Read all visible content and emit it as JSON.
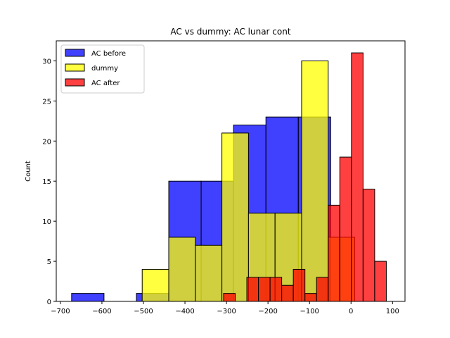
{
  "chart_data": {
    "type": "bar",
    "title": "AC vs dummy: AC lunar cont",
    "xlabel": "",
    "ylabel": "Count",
    "xlim": [
      -710,
      130
    ],
    "ylim": [
      0,
      32.5
    ],
    "xticks": [
      -700,
      -600,
      -500,
      -400,
      -300,
      -200,
      -100,
      0,
      100
    ],
    "yticks": [
      0,
      5,
      10,
      15,
      20,
      25,
      30
    ],
    "legend_position": "top-left",
    "grid": false,
    "series": [
      {
        "name": "AC before",
        "color": "#0000ff",
        "alpha": 0.75,
        "bins": [
          {
            "x0": -673,
            "x1": -595,
            "count": 1
          },
          {
            "x0": -595,
            "x1": -517,
            "count": 0
          },
          {
            "x0": -517,
            "x1": -439,
            "count": 1
          },
          {
            "x0": -439,
            "x1": -361,
            "count": 15
          },
          {
            "x0": -361,
            "x1": -283,
            "count": 15
          },
          {
            "x0": -283,
            "x1": -205,
            "count": 22
          },
          {
            "x0": -205,
            "x1": -127,
            "count": 23
          },
          {
            "x0": -127,
            "x1": -49,
            "count": 23
          }
        ]
      },
      {
        "name": "dummy",
        "color": "#ffff00",
        "alpha": 0.75,
        "bins": [
          {
            "x0": -503,
            "x1": -439,
            "count": 4
          },
          {
            "x0": -439,
            "x1": -375,
            "count": 8
          },
          {
            "x0": -375,
            "x1": -311,
            "count": 7
          },
          {
            "x0": -311,
            "x1": -247,
            "count": 21
          },
          {
            "x0": -247,
            "x1": -183,
            "count": 11
          },
          {
            "x0": -183,
            "x1": -119,
            "count": 11
          },
          {
            "x0": -119,
            "x1": -55,
            "count": 30
          },
          {
            "x0": -55,
            "x1": 9,
            "count": 8
          }
        ]
      },
      {
        "name": "AC after",
        "color": "#ff0000",
        "alpha": 0.75,
        "bins": [
          {
            "x0": -307,
            "x1": -279,
            "count": 1
          },
          {
            "x0": -279,
            "x1": -251,
            "count": 0
          },
          {
            "x0": -251,
            "x1": -223,
            "count": 3
          },
          {
            "x0": -223,
            "x1": -195,
            "count": 3
          },
          {
            "x0": -195,
            "x1": -167,
            "count": 3
          },
          {
            "x0": -167,
            "x1": -139,
            "count": 2
          },
          {
            "x0": -139,
            "x1": -111,
            "count": 4
          },
          {
            "x0": -111,
            "x1": -83,
            "count": 1
          },
          {
            "x0": -83,
            "x1": -55,
            "count": 3
          },
          {
            "x0": -55,
            "x1": -27,
            "count": 12
          },
          {
            "x0": -27,
            "x1": 1,
            "count": 18
          },
          {
            "x0": 1,
            "x1": 29,
            "count": 31
          },
          {
            "x0": 29,
            "x1": 57,
            "count": 14
          },
          {
            "x0": 57,
            "x1": 85,
            "count": 5
          }
        ]
      }
    ]
  }
}
